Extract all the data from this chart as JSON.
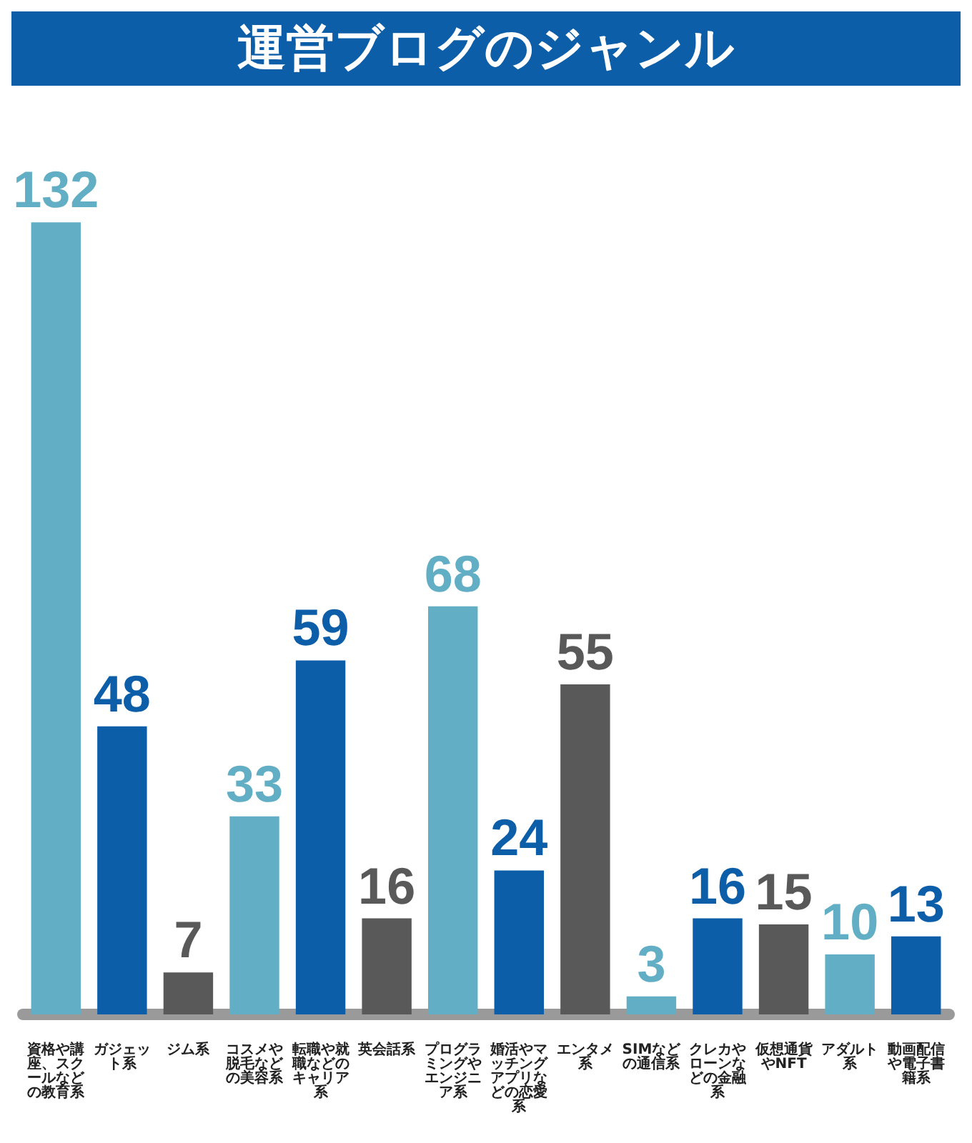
{
  "chart_data": {
    "type": "bar",
    "title": "運営ブログのジャンル",
    "categories": [
      "資格や講座、スクールなどの教育系",
      "ガジェット系",
      "ジム系",
      "コスメや脱毛などの美容系",
      "転職や就職などのキャリア系",
      "英会話系",
      "プログラミングやエンジニア系",
      "婚活やマッチングアプリなどの恋愛系",
      "エンタメ系",
      "SIMなどの通信系",
      "クレカやローンなどの金融系",
      "仮想通貨やNFT",
      "アダルト系",
      "動画配信や電子書籍系"
    ],
    "values": [
      132,
      48,
      7,
      33,
      59,
      16,
      68,
      24,
      55,
      3,
      16,
      15,
      10,
      13
    ],
    "colors": [
      "#62aec4",
      "#0c5ea8",
      "#595959",
      "#62aec4",
      "#0c5ea8",
      "#595959",
      "#62aec4",
      "#0c5ea8",
      "#595959",
      "#62aec4",
      "#0c5ea8",
      "#595959",
      "#62aec4",
      "#0c5ea8"
    ],
    "data_labels": true
  }
}
